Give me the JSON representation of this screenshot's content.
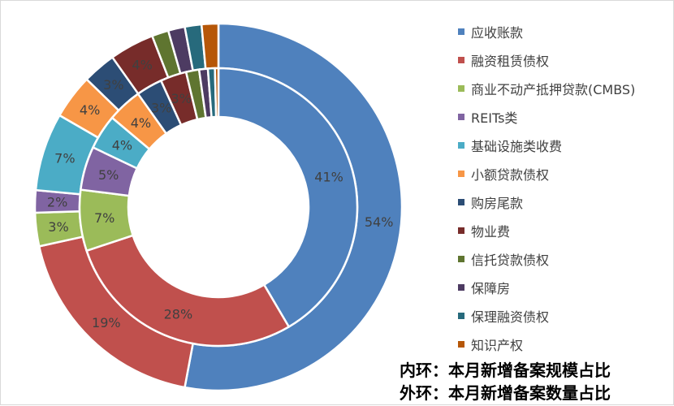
{
  "chart_data": {
    "type": "donut",
    "categories": [
      "应收账款",
      "融资租赁债权",
      "商业不动产抵押贷款(CMBS)",
      "REITs类",
      "基础设施类收费",
      "小额贷款债权",
      "购房尾款",
      "物业费",
      "信托贷款债权",
      "保障房",
      "保理融资债权",
      "知识产权"
    ],
    "colors": [
      "#4f81bd",
      "#c0504d",
      "#9bbb59",
      "#8064a2",
      "#4bacc6",
      "#f79646",
      "#2c4d75",
      "#772c2a",
      "#5f7530",
      "#4d3b62",
      "#276a7c",
      "#b65708"
    ],
    "inner_ring": {
      "values": [
        41,
        28,
        7,
        5,
        4,
        4,
        3,
        3,
        1.5,
        1,
        0.8,
        0.4
      ],
      "labels": [
        "41%",
        "28%",
        "7%",
        "5%",
        "4%",
        "4%",
        "3%",
        "3%",
        "",
        "",
        "",
        ""
      ]
    },
    "outer_ring": {
      "values": [
        54,
        19,
        3,
        2,
        7,
        4,
        3,
        4,
        1.5,
        1.5,
        1.5,
        1.5
      ],
      "labels": [
        "54%",
        "19%",
        "3%",
        "2%",
        "7%",
        "4%",
        "3%",
        "4%",
        "",
        "",
        "",
        ""
      ]
    },
    "notes": [
      "内环：本月新增备案规模占比",
      "外环：本月新增备案数量占比"
    ]
  }
}
